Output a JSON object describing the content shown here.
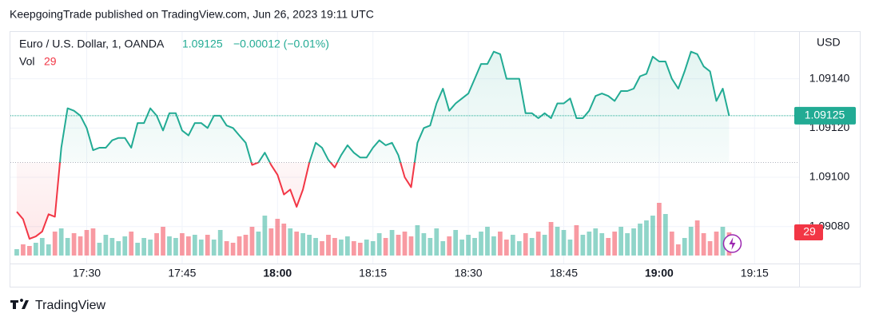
{
  "header": "KeepgoingTrade published on TradingView.com, Jun 26, 2023 19:11 UTC",
  "footer": "TradingView",
  "chart_data": {
    "type": "line",
    "symbol": "Euro / U.S. Dollar, 1, OANDA",
    "change": "−0.00012 (−0.01%)",
    "volume_name": "Vol",
    "currency": "USD",
    "baseline": 1.09106,
    "down_color": "#f23645",
    "x": [
      "17:19",
      "17:20",
      "17:21",
      "17:22",
      "17:23",
      "17:24",
      "17:25",
      "17:26",
      "17:27",
      "17:28",
      "17:29",
      "17:30",
      "17:31",
      "17:32",
      "17:33",
      "17:34",
      "17:35",
      "17:36",
      "17:37",
      "17:38",
      "17:39",
      "17:40",
      "17:41",
      "17:42",
      "17:43",
      "17:44",
      "17:45",
      "17:46",
      "17:47",
      "17:48",
      "17:49",
      "17:50",
      "17:51",
      "17:52",
      "17:53",
      "17:54",
      "17:55",
      "17:56",
      "17:57",
      "17:58",
      "17:59",
      "18:00",
      "18:01",
      "18:02",
      "18:03",
      "18:04",
      "18:05",
      "18:06",
      "18:07",
      "18:08",
      "18:09",
      "18:10",
      "18:11",
      "18:12",
      "18:13",
      "18:14",
      "18:15",
      "18:16",
      "18:17",
      "18:18",
      "18:19",
      "18:20",
      "18:21",
      "18:22",
      "18:23",
      "18:24",
      "18:25",
      "18:26",
      "18:27",
      "18:28",
      "18:29",
      "18:30",
      "18:31",
      "18:32",
      "18:33",
      "18:34",
      "18:35",
      "18:36",
      "18:37",
      "18:38",
      "18:39",
      "18:40",
      "18:41",
      "18:42",
      "18:43",
      "18:44",
      "18:45",
      "18:46",
      "18:47",
      "18:48",
      "18:49",
      "18:50",
      "18:51",
      "18:52",
      "18:53",
      "18:54",
      "18:55",
      "18:56",
      "18:57",
      "18:58",
      "18:59",
      "19:00",
      "19:01",
      "19:02",
      "19:03",
      "19:04",
      "19:05",
      "19:06",
      "19:07",
      "19:08",
      "19:09",
      "19:10",
      "19:11"
    ],
    "series": [
      {
        "name": "Euro / U.S. Dollar",
        "color": "#22ab94",
        "values": [
          1.09086,
          1.09083,
          1.09075,
          1.09076,
          1.09078,
          1.09085,
          1.09084,
          1.09112,
          1.09128,
          1.09127,
          1.09125,
          1.0912,
          1.09111,
          1.09112,
          1.09112,
          1.09115,
          1.09116,
          1.09116,
          1.09112,
          1.09122,
          1.09122,
          1.09128,
          1.09125,
          1.09119,
          1.09126,
          1.09126,
          1.09119,
          1.09117,
          1.09122,
          1.09122,
          1.0912,
          1.09125,
          1.09125,
          1.09121,
          1.0912,
          1.09117,
          1.09114,
          1.09105,
          1.09106,
          1.0911,
          1.09105,
          1.09101,
          1.09093,
          1.09095,
          1.09088,
          1.09095,
          1.09106,
          1.09114,
          1.09112,
          1.09107,
          1.09104,
          1.09109,
          1.09113,
          1.0911,
          1.09108,
          1.09108,
          1.09112,
          1.09115,
          1.09113,
          1.09114,
          1.09109,
          1.091,
          1.09096,
          1.09114,
          1.0912,
          1.09121,
          1.0913,
          1.09136,
          1.09127,
          1.0913,
          1.09132,
          1.09134,
          1.0914,
          1.09146,
          1.09146,
          1.09151,
          1.0915,
          1.0914,
          1.0914,
          1.0914,
          1.09126,
          1.09126,
          1.09124,
          1.09126,
          1.09124,
          1.0913,
          1.0913,
          1.09132,
          1.09124,
          1.09124,
          1.09127,
          1.09133,
          1.09134,
          1.09133,
          1.09131,
          1.09135,
          1.09135,
          1.09136,
          1.09141,
          1.09142,
          1.09149,
          1.09147,
          1.09147,
          1.0914,
          1.09136,
          1.09143,
          1.09151,
          1.0915,
          1.09145,
          1.09143,
          1.09131,
          1.09136,
          1.09125
        ]
      }
    ],
    "volume": [
      8,
      14,
      12,
      16,
      22,
      14,
      30,
      34,
      22,
      28,
      24,
      32,
      34,
      16,
      26,
      22,
      18,
      24,
      30,
      16,
      22,
      20,
      28,
      36,
      24,
      22,
      28,
      24,
      26,
      20,
      26,
      20,
      32,
      18,
      16,
      24,
      26,
      36,
      30,
      50,
      34,
      46,
      40,
      34,
      30,
      28,
      26,
      22,
      18,
      26,
      22,
      20,
      24,
      18,
      16,
      20,
      18,
      28,
      22,
      32,
      26,
      30,
      24,
      38,
      28,
      22,
      34,
      18,
      24,
      32,
      20,
      26,
      22,
      30,
      36,
      24,
      30,
      20,
      26,
      18,
      28,
      22,
      30,
      26,
      42,
      36,
      32,
      20,
      38,
      26,
      30,
      34,
      28,
      22,
      30,
      36,
      28,
      34,
      40,
      44,
      50,
      66,
      52,
      30,
      14,
      22,
      36,
      44,
      28,
      18,
      30,
      36,
      29
    ],
    "xlim": [
      "17:18",
      "19:22"
    ],
    "xticks": [
      "17:30",
      "17:45",
      "18:00",
      "18:15",
      "18:30",
      "18:45",
      "19:00",
      "19:15"
    ],
    "ylim": [
      1.09065,
      1.09159
    ],
    "yticks": [
      {
        "value": 1.0908,
        "label": "1.09080"
      },
      {
        "value": 1.091,
        "label": "1.09100"
      },
      {
        "value": 1.0912,
        "label": "1.09120"
      },
      {
        "value": 1.0914,
        "label": "1.09140"
      }
    ],
    "volume_ylim": [
      0,
      100
    ]
  }
}
